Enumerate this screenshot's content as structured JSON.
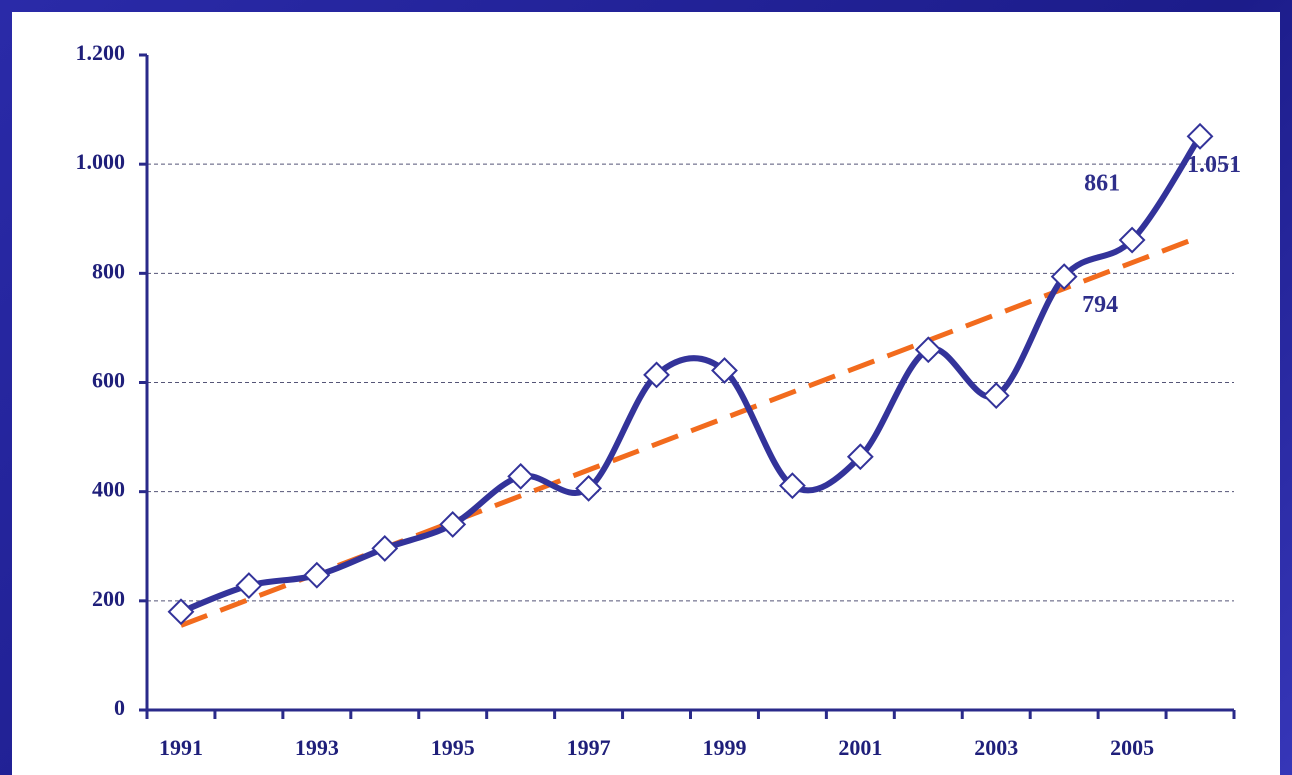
{
  "chart_data": {
    "type": "line",
    "categories": [
      "1991",
      null,
      "1993",
      null,
      "1995",
      null,
      "1997",
      null,
      "1999",
      null,
      "2001",
      null,
      "2003",
      null,
      "2005",
      null
    ],
    "series": [
      {
        "color": "#33339a",
        "values": [
          180,
          228,
          247,
          296,
          340,
          428,
          406,
          614,
          622,
          411,
          464,
          660,
          576,
          794,
          861,
          1051
        ],
        "value_labels": [
          null,
          null,
          null,
          null,
          null,
          null,
          null,
          null,
          null,
          null,
          null,
          null,
          null,
          "794",
          "861",
          "1.051"
        ]
      }
    ],
    "trend": {
      "color": "#f26b1d",
      "start": 155,
      "end": 867
    },
    "ylim": [
      0,
      1200
    ],
    "yticks": [
      0,
      200,
      400,
      600,
      800,
      {
        "value": 1000,
        "label": "1.000"
      },
      {
        "value": 1200,
        "label": "1.200"
      }
    ],
    "grid": true
  }
}
